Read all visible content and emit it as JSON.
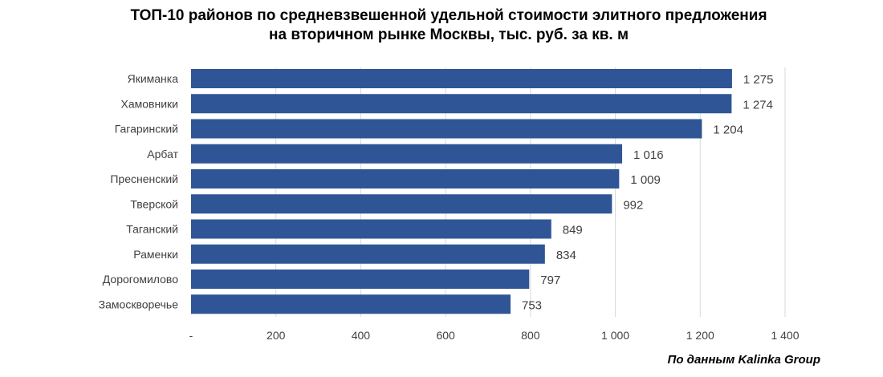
{
  "chart_data": {
    "type": "bar",
    "orientation": "horizontal",
    "title_lines": [
      "ТОП-10 районов по средневзвешенной удельной стоимости элитного предложения",
      "на вторичном рынке Москвы, тыс. руб. за кв. м"
    ],
    "categories": [
      "Якиманка",
      "Хамовники",
      "Гагаринский",
      "Арбат",
      "Пресненский",
      "Тверской",
      "Таганский",
      "Раменки",
      "Дорогомилово",
      "Замоскворечье"
    ],
    "values": [
      1275,
      1274,
      1204,
      1016,
      1009,
      992,
      849,
      834,
      797,
      753
    ],
    "value_labels": [
      "1 275",
      "1 274",
      "1 204",
      "1 016",
      "1 009",
      "992",
      "849",
      "834",
      "797",
      "753"
    ],
    "xlim": [
      0,
      1400
    ],
    "x_ticks": [
      0,
      200,
      400,
      600,
      800,
      1000,
      1200,
      1400
    ],
    "x_tick_labels": [
      "-",
      "200",
      "400",
      "600",
      "800",
      "1 000",
      "1 200",
      "1 400"
    ],
    "grid": "vertical",
    "legend": "none",
    "bar_color": "#2F5597",
    "grid_color": "#D9D9D9",
    "label_color": "#404040",
    "source": "По данным Kalinka Group"
  }
}
